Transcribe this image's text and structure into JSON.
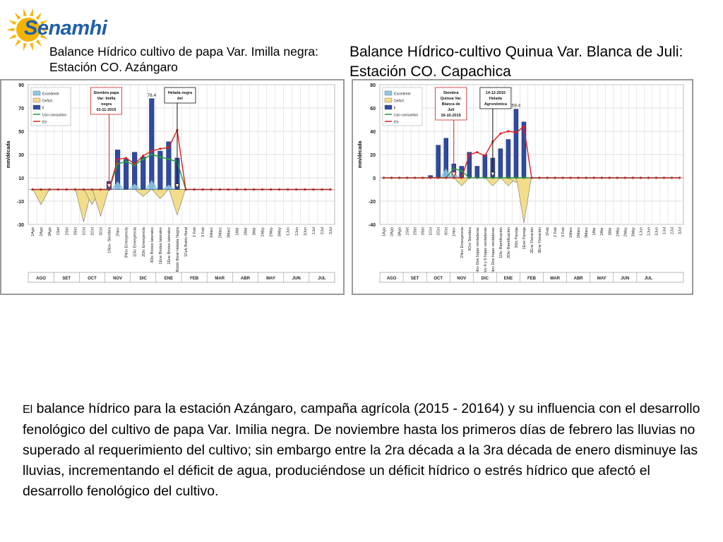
{
  "header": {
    "logo_text": "Senamhi",
    "title_left": "Balance Hídrico cultivo de papa Var. Imilla negra: Estación CO. Azángaro",
    "title_right": "Balance Hídrico-cultivo Quinua Var. Blanca de Juli: Estación CO. Capachica"
  },
  "colors": {
    "logo_text": "#1f5fa8",
    "logo_sun": "#f5b400",
    "bar_ll": "#2f4a9e",
    "bar_excedente": "#8ecae8",
    "deficit_fill": "#f3dd8b",
    "uso_line": "#1e9e3a",
    "etr_line": "#e01e1e",
    "grid": "#d4d4d4",
    "annotation_border": "#d02020"
  },
  "paragraph": {
    "first_word": "El",
    "text": " balance hídrico para la estación Azángaro, campaña agrícola (2015 - 20164) y su influencia con el desarrollo fenológico del cultivo de papa Var. Imilia negra. De noviembre hasta los primeros días de febrero las lluvias no superado al requerimiento del cultivo; sin embargo entre la 2ra década a la 3ra década de enero disminuye las lluvias, incrementando el déficit de agua, produciéndose un déficit hídrico o estrés hídrico que afectó el desarrollo fenológico del cultivo."
  },
  "chart_data": [
    {
      "type": "bar",
      "ylabel": "mm/década",
      "ylim": [
        -30,
        90
      ],
      "yticks": [
        -30,
        -10,
        10,
        30,
        50,
        70,
        90
      ],
      "grid": true,
      "legend_position": "top-left",
      "legend": [
        "Excedente",
        "Deficit",
        "ll",
        "Uso consuntivo",
        "Etr"
      ],
      "categories": [
        "1Ago",
        "2Ago",
        "3Ago",
        "1Set",
        "2Set",
        "3Set",
        "1Oct",
        "2Oct",
        "3Oct",
        "1Nov- Siembra",
        "2Nov",
        "3Nov Emergencia",
        "1Dic Emergencia",
        "2Dic Emergencia",
        "3Dic Brotes laterales",
        "1Ene Brotes laterales",
        "2Ene Brotes laterales",
        "3Ene Botón floral Helada Negra",
        "1Feb Botón floral",
        "2 Feb",
        "3 Feb",
        "1Marz",
        "2Marz",
        "3Marz",
        "1Abr",
        "2Abr",
        "3Abr",
        "1May",
        "2May",
        "3May",
        "1Jun",
        "2Jun",
        "3Jun",
        "1Jul",
        "2Jul",
        "3Jul"
      ],
      "months": [
        "AGO",
        "SET",
        "OCT",
        "NOV",
        "DIC",
        "ENE",
        "FEB",
        "MAR",
        "ABR",
        "MAY",
        "JUN",
        "JUL"
      ],
      "series": [
        {
          "name": "ll",
          "values": [
            0,
            0,
            0,
            0,
            0,
            0,
            0,
            0,
            0,
            7,
            34,
            26,
            32,
            28,
            78,
            33,
            41,
            27,
            0,
            0,
            0,
            0,
            0,
            0,
            0,
            0,
            0,
            0,
            0,
            0,
            0,
            0,
            0,
            0,
            0,
            0
          ]
        },
        {
          "name": "Excedente",
          "values": [
            0,
            0,
            0,
            0,
            0,
            0,
            0,
            0,
            0,
            0,
            7,
            0,
            5,
            0,
            8,
            0,
            4,
            0,
            0,
            0,
            0,
            0,
            0,
            0,
            0,
            0,
            0,
            0,
            0,
            0,
            0,
            0,
            0,
            0,
            0,
            0
          ]
        },
        {
          "name": "Deficit",
          "values": [
            0,
            -13,
            0,
            0,
            0,
            0,
            -28,
            -13,
            -23,
            0,
            0,
            0,
            0,
            -6,
            0,
            -8,
            0,
            -22,
            0,
            0,
            0,
            0,
            0,
            0,
            0,
            0,
            0,
            0,
            0,
            0,
            0,
            0,
            0,
            0,
            0,
            0
          ]
        },
        {
          "name": "Uso consuntivo",
          "values": [
            0,
            0,
            0,
            0,
            0,
            0,
            0,
            0,
            0,
            0,
            22,
            24,
            21,
            26,
            30,
            28,
            26,
            24,
            0,
            0,
            0,
            0,
            0,
            0,
            0,
            0,
            0,
            0,
            0,
            0,
            0,
            0,
            0,
            0,
            0,
            0
          ]
        },
        {
          "name": "Etr",
          "values": [
            0,
            0,
            0,
            0,
            0,
            0,
            0,
            0,
            0,
            0,
            26,
            27,
            22,
            29,
            33,
            35,
            36,
            51,
            0,
            0,
            0,
            0,
            0,
            0,
            0,
            0,
            0,
            0,
            0,
            0,
            0,
            0,
            0,
            0,
            0,
            0
          ]
        }
      ],
      "data_labels": [
        {
          "category_index": 14,
          "text": "78.4"
        }
      ],
      "annotations": [
        {
          "text": "Siembra papa Var: Imilla negra 01-11-2015",
          "category_index": 9
        },
        {
          "text": "Helada negra del",
          "category_index": 17
        }
      ]
    },
    {
      "type": "bar",
      "ylabel": "mm/década",
      "ylim": [
        -40,
        80
      ],
      "yticks": [
        -40,
        -20,
        0,
        20,
        40,
        60,
        80
      ],
      "grid": true,
      "legend_position": "top-left",
      "legend": [
        "Excedente",
        "Deficit",
        "ll",
        "Uso consuntivo",
        "Etr"
      ],
      "categories": [
        "1Ago",
        "2Ago",
        "3Ago",
        "1Set",
        "2Set",
        "3Set",
        "1Oct",
        "2Oct",
        "3Oct",
        "1Nov",
        "2Nov Emergencia",
        "3Oct Siembra",
        "1Nov Dos hojas verdaderas",
        "2Nov 4 y 6 hojas verdaderas",
        "3Nov Dos hojas verdaderas",
        "1Dic Ramificación",
        "2Dic Ramificación",
        "3Dic Panoja",
        "1Ene Panoja",
        "2Ene Floración",
        "3Ene Floración",
        "1Feb",
        "2 Feb",
        "3 Feb",
        "1Marz",
        "2Marz",
        "3Marz",
        "1Abr",
        "2Abr",
        "3Abr",
        "1May",
        "2May",
        "3May",
        "1Jun",
        "2Jun",
        "3Jun",
        "1Jul",
        "2Jul",
        "3Jul"
      ],
      "months": [
        "AGO",
        "SET",
        "OCT",
        "NOV",
        "DIC",
        "ENE",
        "FEB",
        "MAR",
        "ABR",
        "MAY",
        "JUN",
        "JUL"
      ],
      "series": [
        {
          "name": "ll",
          "values": [
            0,
            0,
            0,
            0,
            0,
            0,
            2,
            28,
            34,
            12,
            10,
            22,
            10,
            20,
            17,
            25,
            33,
            59,
            48,
            0,
            0,
            0,
            0,
            0,
            0,
            0,
            0,
            0,
            0,
            0,
            0,
            0,
            0,
            0,
            0,
            0,
            0,
            0,
            0
          ]
        },
        {
          "name": "Excedente",
          "values": [
            0,
            0,
            0,
            0,
            0,
            0,
            0,
            0,
            8,
            4,
            0,
            0,
            0,
            0,
            0,
            0,
            0,
            0,
            0,
            0,
            0,
            0,
            0,
            0,
            0,
            0,
            0,
            0,
            0,
            0,
            0,
            0,
            0,
            0,
            0,
            0,
            0,
            0,
            0
          ]
        },
        {
          "name": "Deficit",
          "values": [
            0,
            0,
            0,
            0,
            0,
            0,
            0,
            0,
            0,
            0,
            -7,
            0,
            0,
            0,
            -7,
            0,
            -7,
            -4,
            -39,
            0,
            0,
            0,
            0,
            0,
            0,
            0,
            0,
            0,
            0,
            0,
            0,
            0,
            0,
            0,
            0,
            0,
            0,
            0,
            0
          ]
        },
        {
          "name": "Uso consuntivo",
          "values": [
            0,
            0,
            0,
            0,
            0,
            0,
            0,
            0,
            0,
            8,
            6,
            0,
            0,
            0,
            0,
            0,
            0,
            0,
            0,
            0,
            0,
            0,
            0,
            0,
            0,
            0,
            0,
            0,
            0,
            0,
            0,
            0,
            0,
            0,
            0,
            0,
            0,
            0,
            0
          ]
        },
        {
          "name": "Etr",
          "values": [
            0,
            0,
            0,
            0,
            0,
            0,
            0,
            0,
            0,
            0,
            0,
            20,
            22,
            19,
            31,
            38,
            40,
            39,
            44,
            0,
            0,
            0,
            0,
            0,
            0,
            0,
            0,
            0,
            0,
            0,
            0,
            0,
            0,
            0,
            0,
            0,
            0,
            0,
            0
          ]
        }
      ],
      "data_labels": [
        {
          "category_index": 17,
          "text": "59.4"
        }
      ],
      "annotations": [
        {
          "text": "Siembra Quinua Var. Blanca de Juli 26-10-2015",
          "category_index": 9
        },
        {
          "text": "14-12-2015 Helada Agronómica",
          "category_index": 14
        }
      ]
    }
  ]
}
